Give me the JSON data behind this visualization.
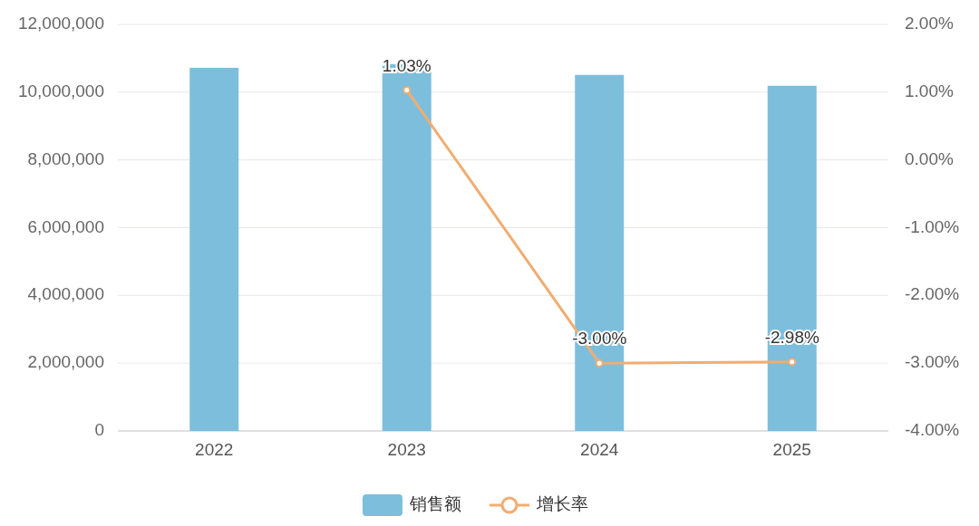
{
  "chart_data": {
    "type": "bar",
    "categories": [
      "2022",
      "2023",
      "2024",
      "2025"
    ],
    "series": [
      {
        "name": "销售额",
        "color": "#7dbedc",
        "values": [
          10720000,
          10830000,
          10510000,
          10190000
        ]
      },
      {
        "name": "增长率",
        "type": "line",
        "axis": "y2",
        "color": "#f0ad72",
        "marker": "circle",
        "values": [
          null,
          1.03,
          -3.0,
          -2.98
        ],
        "value_labels": [
          null,
          "1.03%",
          "-3.00%",
          "-2.98%"
        ]
      }
    ],
    "ylim": [
      0,
      12000000
    ],
    "yticks": [
      {
        "value": 0,
        "label": "0"
      },
      {
        "value": 2000000,
        "label": "2,000,000"
      },
      {
        "value": 4000000,
        "label": "4,000,000"
      },
      {
        "value": 6000000,
        "label": "6,000,000"
      },
      {
        "value": 8000000,
        "label": "8,000,000"
      },
      {
        "value": 10000000,
        "label": "10,000,000"
      },
      {
        "value": 12000000,
        "label": "12,000,000"
      }
    ],
    "y2lim": [
      -4,
      2
    ],
    "y2ticks": [
      {
        "value": -4,
        "label": "-4.00%"
      },
      {
        "value": -3,
        "label": "-3.00%"
      },
      {
        "value": -2,
        "label": "-2.00%"
      },
      {
        "value": -1,
        "label": "-1.00%"
      },
      {
        "value": 0,
        "label": "0.00%"
      },
      {
        "value": 1,
        "label": "1.00%"
      },
      {
        "value": 2,
        "label": "2.00%"
      }
    ],
    "grid": "y",
    "legend": "bottom"
  }
}
